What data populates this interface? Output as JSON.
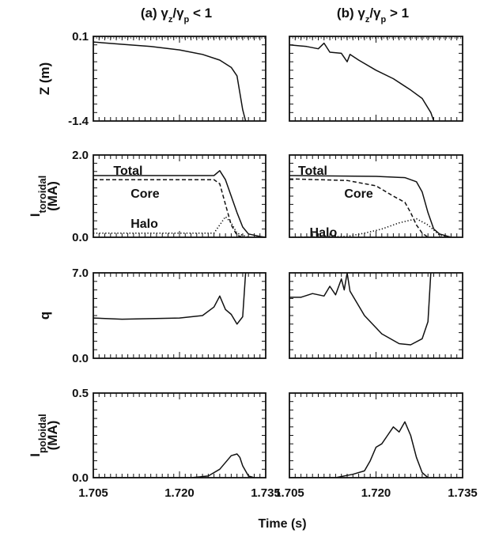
{
  "chart_data": {
    "type": "line",
    "x_ticks": [
      "1.705",
      "1.720",
      "1.735"
    ],
    "x_label": "Time (s)",
    "xlim": [
      1.705,
      1.735
    ],
    "columns": [
      {
        "id": "a",
        "prefix": "(a) ",
        "gamma": "γ",
        "sub1": "z",
        "slash": "/",
        "sub2": "p",
        "rel": " < 1"
      },
      {
        "id": "b",
        "prefix": "(b) ",
        "gamma": "γ",
        "sub1": "z",
        "slash": "/",
        "sub2": "p",
        "rel": " > 1"
      }
    ],
    "rows": [
      {
        "id": "z",
        "ylabel": {
          "main": "Z (m)"
        },
        "ylim": [
          -1.4,
          0.1
        ],
        "y_ticks": [
          "0.1",
          "-1.4"
        ],
        "reference_line": 0.1,
        "panels": {
          "a": {
            "series": [
              {
                "style": "solid",
                "points": [
                  [
                    1.705,
                    0.0
                  ],
                  [
                    1.71,
                    -0.04
                  ],
                  [
                    1.715,
                    -0.08
                  ],
                  [
                    1.72,
                    -0.14
                  ],
                  [
                    1.724,
                    -0.22
                  ],
                  [
                    1.727,
                    -0.32
                  ],
                  [
                    1.729,
                    -0.45
                  ],
                  [
                    1.73,
                    -0.6
                  ],
                  [
                    1.7305,
                    -0.9
                  ],
                  [
                    1.731,
                    -1.2
                  ],
                  [
                    1.7315,
                    -1.4
                  ]
                ]
              }
            ]
          },
          "b": {
            "series": [
              {
                "style": "solid",
                "points": [
                  [
                    1.705,
                    -0.05
                  ],
                  [
                    1.708,
                    -0.08
                  ],
                  [
                    1.71,
                    -0.12
                  ],
                  [
                    1.711,
                    -0.02
                  ],
                  [
                    1.712,
                    -0.18
                  ],
                  [
                    1.714,
                    -0.2
                  ],
                  [
                    1.715,
                    -0.35
                  ],
                  [
                    1.7155,
                    -0.22
                  ],
                  [
                    1.717,
                    -0.32
                  ],
                  [
                    1.72,
                    -0.5
                  ],
                  [
                    1.723,
                    -0.65
                  ],
                  [
                    1.726,
                    -0.85
                  ],
                  [
                    1.728,
                    -1.0
                  ],
                  [
                    1.7295,
                    -1.25
                  ],
                  [
                    1.73,
                    -1.4
                  ]
                ]
              }
            ]
          }
        }
      },
      {
        "id": "itor",
        "ylabel": {
          "main": "I",
          "sub": "toroidal",
          "units": "(MA)"
        },
        "ylim": [
          0.0,
          2.0
        ],
        "y_ticks": [
          "2.0",
          "0.0"
        ],
        "panels": {
          "a": {
            "labels": [
              {
                "text": "Total",
                "x": 1.7085,
                "y": 1.63
              },
              {
                "text": "Core",
                "x": 1.7115,
                "y": 1.08
              },
              {
                "text": "Halo",
                "x": 1.7115,
                "y": 0.35
              }
            ],
            "series": [
              {
                "name": "Total",
                "style": "solid",
                "points": [
                  [
                    1.705,
                    1.5
                  ],
                  [
                    1.715,
                    1.5
                  ],
                  [
                    1.726,
                    1.5
                  ],
                  [
                    1.727,
                    1.62
                  ],
                  [
                    1.728,
                    1.4
                  ],
                  [
                    1.729,
                    1.0
                  ],
                  [
                    1.73,
                    0.6
                  ],
                  [
                    1.731,
                    0.25
                  ],
                  [
                    1.732,
                    0.08
                  ],
                  [
                    1.734,
                    0.02
                  ],
                  [
                    1.735,
                    0.0
                  ]
                ]
              },
              {
                "name": "Core",
                "style": "dashed",
                "points": [
                  [
                    1.705,
                    1.4
                  ],
                  [
                    1.715,
                    1.4
                  ],
                  [
                    1.726,
                    1.4
                  ],
                  [
                    1.727,
                    1.3
                  ],
                  [
                    1.728,
                    0.8
                  ],
                  [
                    1.729,
                    0.3
                  ],
                  [
                    1.73,
                    0.05
                  ],
                  [
                    1.731,
                    0.0
                  ]
                ]
              },
              {
                "name": "Halo",
                "style": "dotted",
                "points": [
                  [
                    1.705,
                    0.1
                  ],
                  [
                    1.726,
                    0.1
                  ],
                  [
                    1.727,
                    0.3
                  ],
                  [
                    1.728,
                    0.5
                  ],
                  [
                    1.729,
                    0.35
                  ],
                  [
                    1.73,
                    0.1
                  ],
                  [
                    1.732,
                    0.0
                  ]
                ]
              }
            ]
          },
          "b": {
            "labels": [
              {
                "text": "Total",
                "x": 1.7065,
                "y": 1.63
              },
              {
                "text": "Core",
                "x": 1.7145,
                "y": 1.08
              },
              {
                "text": "Halo",
                "x": 1.7085,
                "y": 0.13
              }
            ],
            "series": [
              {
                "name": "Total",
                "style": "solid",
                "points": [
                  [
                    1.705,
                    1.5
                  ],
                  [
                    1.72,
                    1.48
                  ],
                  [
                    1.725,
                    1.45
                  ],
                  [
                    1.727,
                    1.35
                  ],
                  [
                    1.728,
                    1.1
                  ],
                  [
                    1.729,
                    0.6
                  ],
                  [
                    1.73,
                    0.2
                  ],
                  [
                    1.731,
                    0.08
                  ],
                  [
                    1.733,
                    0.0
                  ]
                ]
              },
              {
                "name": "Core",
                "style": "dashed",
                "points": [
                  [
                    1.705,
                    1.42
                  ],
                  [
                    1.715,
                    1.38
                  ],
                  [
                    1.72,
                    1.25
                  ],
                  [
                    1.723,
                    1.0
                  ],
                  [
                    1.725,
                    0.85
                  ],
                  [
                    1.726,
                    0.6
                  ],
                  [
                    1.727,
                    0.3
                  ],
                  [
                    1.728,
                    0.1
                  ],
                  [
                    1.729,
                    0.0
                  ]
                ]
              },
              {
                "name": "Halo",
                "style": "dotted",
                "points": [
                  [
                    1.705,
                    0.0
                  ],
                  [
                    1.715,
                    0.02
                  ],
                  [
                    1.718,
                    0.1
                  ],
                  [
                    1.721,
                    0.2
                  ],
                  [
                    1.724,
                    0.35
                  ],
                  [
                    1.727,
                    0.45
                  ],
                  [
                    1.729,
                    0.3
                  ],
                  [
                    1.731,
                    0.05
                  ],
                  [
                    1.733,
                    0.0
                  ]
                ]
              }
            ]
          }
        }
      },
      {
        "id": "q",
        "ylabel": {
          "main": "q"
        },
        "ylim": [
          0.0,
          7.0
        ],
        "y_ticks": [
          "7.0",
          "0.0"
        ],
        "panels": {
          "a": {
            "series": [
              {
                "style": "solid",
                "points": [
                  [
                    1.705,
                    3.3
                  ],
                  [
                    1.71,
                    3.2
                  ],
                  [
                    1.715,
                    3.25
                  ],
                  [
                    1.72,
                    3.3
                  ],
                  [
                    1.724,
                    3.5
                  ],
                  [
                    1.726,
                    4.2
                  ],
                  [
                    1.727,
                    5.1
                  ],
                  [
                    1.728,
                    4.0
                  ],
                  [
                    1.729,
                    3.6
                  ],
                  [
                    1.73,
                    2.8
                  ],
                  [
                    1.731,
                    3.4
                  ],
                  [
                    1.7315,
                    7.0
                  ]
                ]
              }
            ]
          },
          "b": {
            "series": [
              {
                "style": "solid",
                "points": [
                  [
                    1.705,
                    5.0
                  ],
                  [
                    1.707,
                    5.0
                  ],
                  [
                    1.709,
                    5.3
                  ],
                  [
                    1.711,
                    5.1
                  ],
                  [
                    1.712,
                    5.9
                  ],
                  [
                    1.713,
                    5.2
                  ],
                  [
                    1.714,
                    6.5
                  ],
                  [
                    1.7145,
                    5.6
                  ],
                  [
                    1.715,
                    7.0
                  ],
                  [
                    1.7155,
                    5.5
                  ],
                  [
                    1.718,
                    3.5
                  ],
                  [
                    1.721,
                    2.0
                  ],
                  [
                    1.724,
                    1.2
                  ],
                  [
                    1.726,
                    1.1
                  ],
                  [
                    1.728,
                    1.6
                  ],
                  [
                    1.729,
                    3.0
                  ],
                  [
                    1.7295,
                    7.0
                  ]
                ]
              }
            ]
          }
        }
      },
      {
        "id": "ipol",
        "ylabel": {
          "main": "I",
          "sub": "poloidal",
          "units": "(MA)"
        },
        "ylim": [
          0.0,
          0.5
        ],
        "y_ticks": [
          "0.5",
          "0.0"
        ],
        "panels": {
          "a": {
            "series": [
              {
                "style": "solid",
                "points": [
                  [
                    1.705,
                    0.0
                  ],
                  [
                    1.722,
                    0.0
                  ],
                  [
                    1.725,
                    0.01
                  ],
                  [
                    1.727,
                    0.05
                  ],
                  [
                    1.729,
                    0.13
                  ],
                  [
                    1.73,
                    0.14
                  ],
                  [
                    1.7305,
                    0.12
                  ],
                  [
                    1.731,
                    0.07
                  ],
                  [
                    1.732,
                    0.01
                  ],
                  [
                    1.733,
                    0.0
                  ]
                ]
              }
            ]
          },
          "b": {
            "series": [
              {
                "style": "solid",
                "points": [
                  [
                    1.705,
                    0.0
                  ],
                  [
                    1.713,
                    0.0
                  ],
                  [
                    1.716,
                    0.02
                  ],
                  [
                    1.718,
                    0.04
                  ],
                  [
                    1.719,
                    0.1
                  ],
                  [
                    1.72,
                    0.18
                  ],
                  [
                    1.721,
                    0.2
                  ],
                  [
                    1.722,
                    0.25
                  ],
                  [
                    1.723,
                    0.3
                  ],
                  [
                    1.724,
                    0.27
                  ],
                  [
                    1.725,
                    0.33
                  ],
                  [
                    1.726,
                    0.25
                  ],
                  [
                    1.727,
                    0.12
                  ],
                  [
                    1.728,
                    0.03
                  ],
                  [
                    1.729,
                    0.0
                  ]
                ]
              }
            ]
          }
        }
      }
    ]
  }
}
